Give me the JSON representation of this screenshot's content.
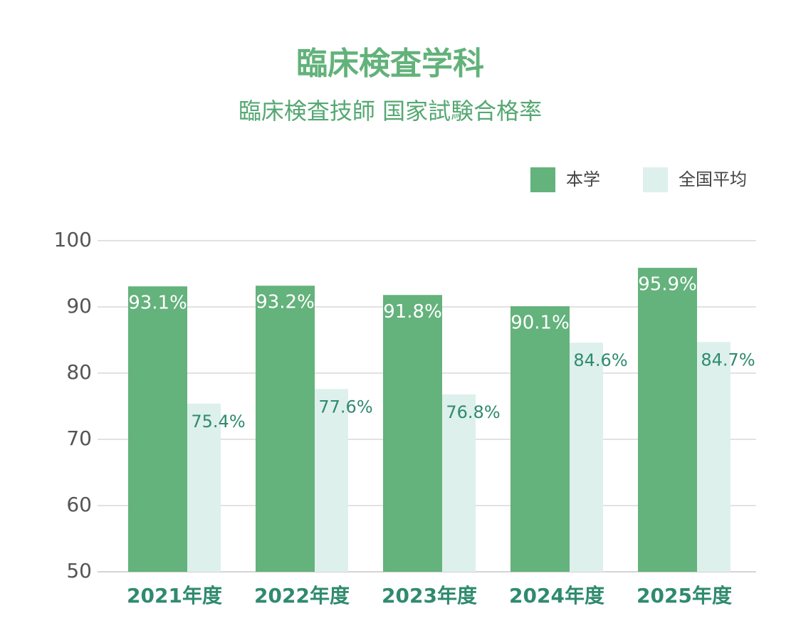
{
  "chart_data": {
    "type": "bar",
    "title": "臨床検査学科",
    "subtitle": "臨床検査技師 国家試験合格率",
    "categories": [
      "2021年度",
      "2022年度",
      "2023年度",
      "2024年度",
      "2025年度"
    ],
    "series": [
      {
        "name": "本学",
        "color": "#64b27c",
        "values": [
          93.1,
          93.2,
          91.8,
          90.1,
          95.9
        ],
        "value_labels": [
          "93.1%",
          "93.2%",
          "91.8%",
          "90.1%",
          "95.9%"
        ]
      },
      {
        "name": "全国平均",
        "color": "#ddf0ec",
        "values": [
          75.4,
          77.6,
          76.8,
          84.6,
          84.7
        ],
        "value_labels": [
          "75.4%",
          "77.6%",
          "76.8%",
          "84.6%",
          "84.7%"
        ]
      }
    ],
    "ylim": [
      50,
      100
    ],
    "yticks": [
      50,
      60,
      70,
      80,
      90,
      100
    ],
    "grid": true,
    "legend": "top-right"
  }
}
